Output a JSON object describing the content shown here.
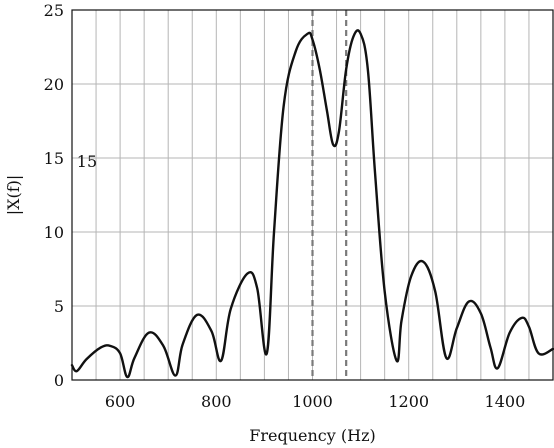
{
  "chart_data": {
    "type": "line",
    "title": "",
    "xlabel": "Frequency (Hz)",
    "ylabel": "|X(f)|",
    "xlim": [
      500,
      1500
    ],
    "ylim": [
      0,
      25
    ],
    "xticks": [
      600,
      800,
      1000,
      1200,
      1400
    ],
    "yticks": [
      0,
      5,
      10,
      15,
      20,
      25
    ],
    "grid": true,
    "legend": "none",
    "series_color": "#111111",
    "grid_color": "#b5b5b5",
    "marker_color": "#7a7a7a",
    "vertical_markers": [
      {
        "x": 1000,
        "style": "dashed"
      },
      {
        "x": 1070,
        "style": "dashed"
      }
    ],
    "annotations": [
      {
        "text": "15",
        "x": 510,
        "y": 14.8
      }
    ],
    "series": [
      {
        "x": [
          500,
          510,
          530,
          560,
          580,
          600,
          615,
          630,
          660,
          690,
          715,
          730,
          760,
          790,
          810,
          830,
          865,
          885,
          905,
          920,
          940,
          965,
          990,
          1000,
          1015,
          1030,
          1043,
          1055,
          1070,
          1085,
          1100,
          1115,
          1130,
          1150,
          1175,
          1185,
          1205,
          1230,
          1255,
          1278,
          1300,
          1325,
          1350,
          1370,
          1385,
          1410,
          1435,
          1450,
          1470,
          1500
        ],
        "y": [
          1.0,
          0.6,
          1.4,
          2.2,
          2.3,
          1.8,
          0.2,
          1.5,
          3.2,
          2.3,
          0.3,
          2.4,
          4.4,
          3.3,
          1.3,
          4.8,
          7.2,
          6.2,
          1.8,
          10.0,
          18.5,
          22.2,
          23.4,
          23.0,
          21.0,
          18.2,
          15.9,
          16.8,
          21.0,
          23.2,
          23.4,
          21.0,
          14.0,
          6.0,
          1.3,
          4.0,
          7.0,
          8.0,
          6.0,
          1.5,
          3.5,
          5.3,
          4.5,
          2.2,
          0.8,
          3.2,
          4.2,
          3.6,
          1.8,
          2.1
        ]
      }
    ]
  }
}
